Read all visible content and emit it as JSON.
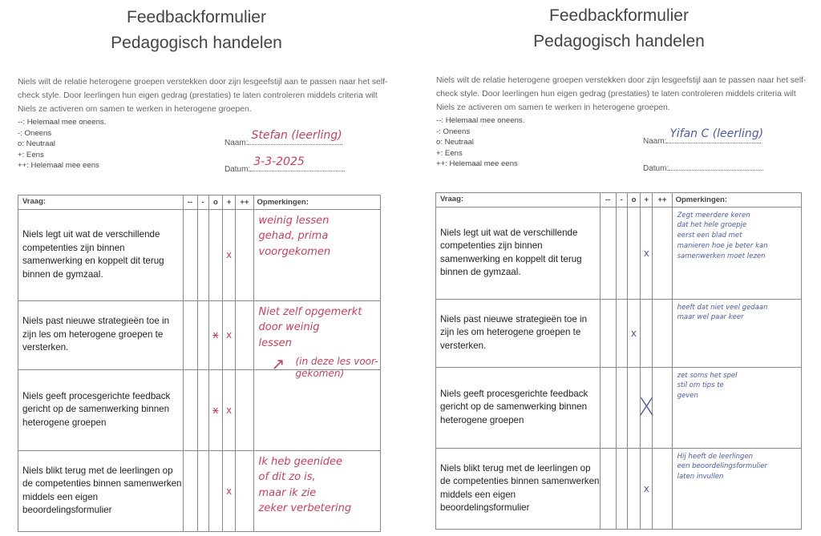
{
  "forms": [
    {
      "title_line1": "Feedbackformulier",
      "title_line2": "Pedagogisch handelen",
      "intro": "Niels wilt de relatie heterogene groepen verstekken door zijn lesgeefstijl aan te passen naar het self-check style. Door leerlingen hun eigen gedrag (prestaties) te laten controleren middels criteria wilt Niels ze activeren om samen te werken in heterogene groepen.",
      "legend": [
        "--: Helemaal mee oneens.",
        "-: Oneens",
        "o: Neutraal",
        "+: Eens",
        "++: Helemaal mee eens"
      ],
      "name_label": "Naam:",
      "name_value": "Stefan (leerling)",
      "date_label": "Datum:",
      "date_value": "3-3-2025",
      "ink_color": "#c8415a",
      "headers": [
        "Vraag:",
        "--",
        "-",
        "o",
        "+",
        "++",
        "Opmerkingen:"
      ],
      "rows": [
        {
          "question": "Niels legt uit wat de verschillende competenties zijn binnen samenwerking en koppelt dit terug binnen de gymzaal.",
          "marks": {
            "+": "x"
          },
          "remark": "weinig lessen\ngehad, prima\nvoorgekomen"
        },
        {
          "question": "Niels past nieuwe strategieën toe in zijn les om heterogene groepen te versterken.",
          "marks": {
            "o": "x (doorgestreept)",
            "+": "x"
          },
          "remark": "Niet zelf opgemerkt\ndoor weinig\nlessen",
          "remark_extra": "(in deze les voor-\ngekomen)"
        },
        {
          "question": "Niels geeft procesgerichte feedback gericht op de samenwerking binnen heterogene groepen",
          "marks": {
            "o": "x (doorgestreept)",
            "+": "x"
          },
          "remark": ""
        },
        {
          "question": "Niels blikt terug met de leerlingen op de competenties binnen samenwerken middels een eigen beoordelingsformulier",
          "marks": {
            "+": "x"
          },
          "remark": "Ik heb geenidee\nof dit zo is,\nmaar ik zie\nzeker verbetering"
        }
      ]
    },
    {
      "title_line1": "Feedbackformulier",
      "title_line2": "Pedagogisch handelen",
      "intro": "Niels wilt de relatie heterogene groepen verstekken door zijn lesgeefstijl aan te passen naar het self-check style. Door leerlingen hun eigen gedrag (prestaties) te laten controleren middels criteria wilt Niels ze activeren om samen te werken in heterogene groepen.",
      "legend": [
        "--: Helemaal mee oneens.",
        "-: Oneens",
        "o: Neutraal",
        "+: Eens",
        "++: Helemaal mee eens"
      ],
      "name_label": "Naam:",
      "name_value": "Yifan C (leerling)",
      "date_label": "Datum:",
      "date_value": "",
      "ink_color": "#4b5aae",
      "headers": [
        "Vraag:",
        "--",
        "-",
        "o",
        "+",
        "++",
        "Opmerkingen:"
      ],
      "rows": [
        {
          "question": "Niels legt uit wat de verschillende competenties zijn binnen samenwerking en koppelt dit terug binnen de gymzaal.",
          "marks": {
            "+": "x"
          },
          "remark": "Zegt meerdere keren\ndat het hele groepje\neerst een blad met\nmanieren hoe je beter kan\nsamenwerken moet lezen"
        },
        {
          "question": "Niels past nieuwe strategieën toe in zijn les om heterogene groepen te versterken.",
          "marks": {
            "o": "x"
          },
          "remark": "heeft dat niet veel gedaan\nmaar wel paar keer"
        },
        {
          "question": "Niels geeft procesgerichte feedback gericht op de samenwerking binnen heterogene groepen",
          "marks": {
            "+": "X"
          },
          "remark": "zet soms het spel\nstil om tips te\ngeven"
        },
        {
          "question": "Niels blikt terug met de leerlingen op de competenties binnen samenwerken middels een eigen beoordelingsformulier",
          "marks": {
            "+": "x"
          },
          "remark": "Hij heeft de leerlingen\neen beoordelingsformulier\nlaten invullen"
        }
      ]
    }
  ]
}
